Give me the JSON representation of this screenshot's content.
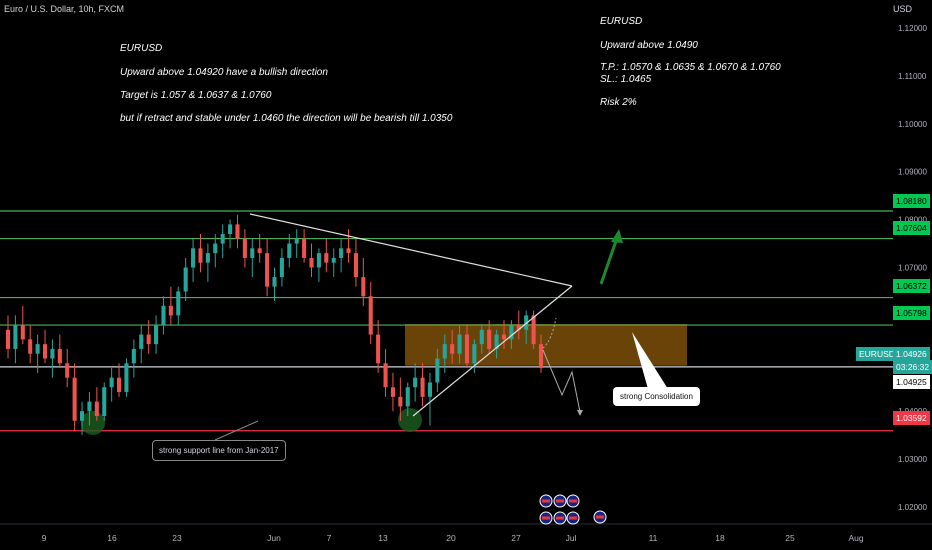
{
  "header": {
    "symbol": "Euro / U.S. Dollar, 10h, FXCM",
    "currency": "USD"
  },
  "notes_left": {
    "title": "EURUSD",
    "line1": "Upward above 1.04920  have a bullish direction",
    "line2": "Target is  1.057  & 1.0637 & 1.0760",
    "line3": "but if retract and stable under 1.0460 the direction will be bearish till 1.0350"
  },
  "notes_right": {
    "title": "EURUSD",
    "line1": "Upward above 1.0490",
    "line2": "T.P.: 1.0570 & 1.0635 & 1.0670 & 1.0760",
    "line3": "SL.: 1.0465",
    "line4": "Risk 2%"
  },
  "callouts": {
    "consolidation": "strong Consolidation",
    "support": "strong support line from Jan-2017"
  },
  "price_tags": {
    "t1": "1.08180",
    "t2": "1.07604",
    "t3": "1.06372",
    "t4": "1.05798",
    "symbol": "EURUSD",
    "price": "1.04926",
    "countdown": "03:26:32",
    "last": "1.04925",
    "support": "1.03592"
  },
  "colors": {
    "up": "#26a69a",
    "down": "#ef5350",
    "level": "#4caf50",
    "support": "#f23645",
    "zone": "#8d5a0c"
  },
  "chart_data": {
    "type": "candlestick",
    "y_axis": {
      "ylim": [
        1.015,
        1.125
      ],
      "ticks": [
        "1.12000",
        "1.11000",
        "1.10000",
        "1.09000",
        "1.08000",
        "1.07000",
        "1.06000",
        "1.05000",
        "1.04000",
        "1.03000",
        "1.02000"
      ]
    },
    "x_ticks": [
      "9",
      "16",
      "23",
      "Jun",
      "7",
      "13",
      "20",
      "27",
      "Jul",
      "11",
      "18",
      "25",
      "Aug"
    ],
    "horizontal_levels": [
      1.0818,
      1.07604,
      1.06372,
      1.05798,
      1.04926,
      1.03592
    ],
    "zone": {
      "price_from": 1.0495,
      "price_to": 1.0582
    },
    "candles": [
      [
        1.057,
        1.06,
        1.051,
        1.053
      ],
      [
        1.053,
        1.06,
        1.05,
        1.058
      ],
      [
        1.058,
        1.062,
        1.054,
        1.055
      ],
      [
        1.055,
        1.058,
        1.05,
        1.052
      ],
      [
        1.052,
        1.056,
        1.048,
        1.054
      ],
      [
        1.054,
        1.057,
        1.05,
        1.051
      ],
      [
        1.051,
        1.055,
        1.047,
        1.053
      ],
      [
        1.053,
        1.056,
        1.049,
        1.05
      ],
      [
        1.05,
        1.053,
        1.045,
        1.047
      ],
      [
        1.047,
        1.05,
        1.036,
        1.038
      ],
      [
        1.038,
        1.042,
        1.035,
        1.04
      ],
      [
        1.04,
        1.044,
        1.037,
        1.042
      ],
      [
        1.042,
        1.045,
        1.038,
        1.039
      ],
      [
        1.039,
        1.046,
        1.038,
        1.045
      ],
      [
        1.045,
        1.049,
        1.042,
        1.047
      ],
      [
        1.047,
        1.05,
        1.043,
        1.044
      ],
      [
        1.044,
        1.051,
        1.043,
        1.05
      ],
      [
        1.05,
        1.055,
        1.047,
        1.053
      ],
      [
        1.053,
        1.058,
        1.05,
        1.056
      ],
      [
        1.056,
        1.059,
        1.052,
        1.054
      ],
      [
        1.054,
        1.06,
        1.052,
        1.058
      ],
      [
        1.058,
        1.064,
        1.056,
        1.062
      ],
      [
        1.062,
        1.066,
        1.058,
        1.06
      ],
      [
        1.06,
        1.066,
        1.058,
        1.065
      ],
      [
        1.065,
        1.072,
        1.063,
        1.07
      ],
      [
        1.07,
        1.076,
        1.067,
        1.074
      ],
      [
        1.074,
        1.077,
        1.069,
        1.071
      ],
      [
        1.071,
        1.075,
        1.067,
        1.073
      ],
      [
        1.073,
        1.077,
        1.07,
        1.075
      ],
      [
        1.075,
        1.079,
        1.072,
        1.077
      ],
      [
        1.077,
        1.08,
        1.074,
        1.079
      ],
      [
        1.079,
        1.081,
        1.074,
        1.076
      ],
      [
        1.076,
        1.078,
        1.07,
        1.072
      ],
      [
        1.072,
        1.076,
        1.068,
        1.074
      ],
      [
        1.074,
        1.077,
        1.071,
        1.073
      ],
      [
        1.073,
        1.076,
        1.064,
        1.066
      ],
      [
        1.066,
        1.07,
        1.063,
        1.068
      ],
      [
        1.068,
        1.074,
        1.066,
        1.072
      ],
      [
        1.072,
        1.077,
        1.07,
        1.075
      ],
      [
        1.075,
        1.078,
        1.072,
        1.076
      ],
      [
        1.076,
        1.078,
        1.071,
        1.072
      ],
      [
        1.072,
        1.075,
        1.068,
        1.07
      ],
      [
        1.07,
        1.074,
        1.067,
        1.073
      ],
      [
        1.073,
        1.076,
        1.069,
        1.071
      ],
      [
        1.071,
        1.074,
        1.068,
        1.072
      ],
      [
        1.072,
        1.076,
        1.069,
        1.074
      ],
      [
        1.074,
        1.078,
        1.071,
        1.073
      ],
      [
        1.073,
        1.076,
        1.066,
        1.068
      ],
      [
        1.068,
        1.072,
        1.062,
        1.064
      ],
      [
        1.064,
        1.067,
        1.054,
        1.056
      ],
      [
        1.056,
        1.059,
        1.048,
        1.05
      ],
      [
        1.05,
        1.053,
        1.043,
        1.045
      ],
      [
        1.045,
        1.048,
        1.04,
        1.043
      ],
      [
        1.043,
        1.047,
        1.038,
        1.041
      ],
      [
        1.041,
        1.046,
        1.039,
        1.045
      ],
      [
        1.045,
        1.05,
        1.042,
        1.047
      ],
      [
        1.047,
        1.05,
        1.041,
        1.043
      ],
      [
        1.043,
        1.048,
        1.037,
        1.046
      ],
      [
        1.046,
        1.053,
        1.044,
        1.051
      ],
      [
        1.051,
        1.056,
        1.048,
        1.054
      ],
      [
        1.054,
        1.057,
        1.05,
        1.052
      ],
      [
        1.052,
        1.058,
        1.05,
        1.056
      ],
      [
        1.056,
        1.058,
        1.049,
        1.05
      ],
      [
        1.05,
        1.055,
        1.048,
        1.054
      ],
      [
        1.054,
        1.058,
        1.052,
        1.057
      ],
      [
        1.057,
        1.059,
        1.052,
        1.053
      ],
      [
        1.053,
        1.057,
        1.051,
        1.056
      ],
      [
        1.056,
        1.059,
        1.053,
        1.055
      ],
      [
        1.055,
        1.059,
        1.053,
        1.058
      ],
      [
        1.058,
        1.061,
        1.055,
        1.057
      ],
      [
        1.057,
        1.061,
        1.054,
        1.06
      ],
      [
        1.06,
        1.061,
        1.053,
        1.054
      ],
      [
        1.054,
        1.056,
        1.048,
        1.049
      ]
    ]
  }
}
